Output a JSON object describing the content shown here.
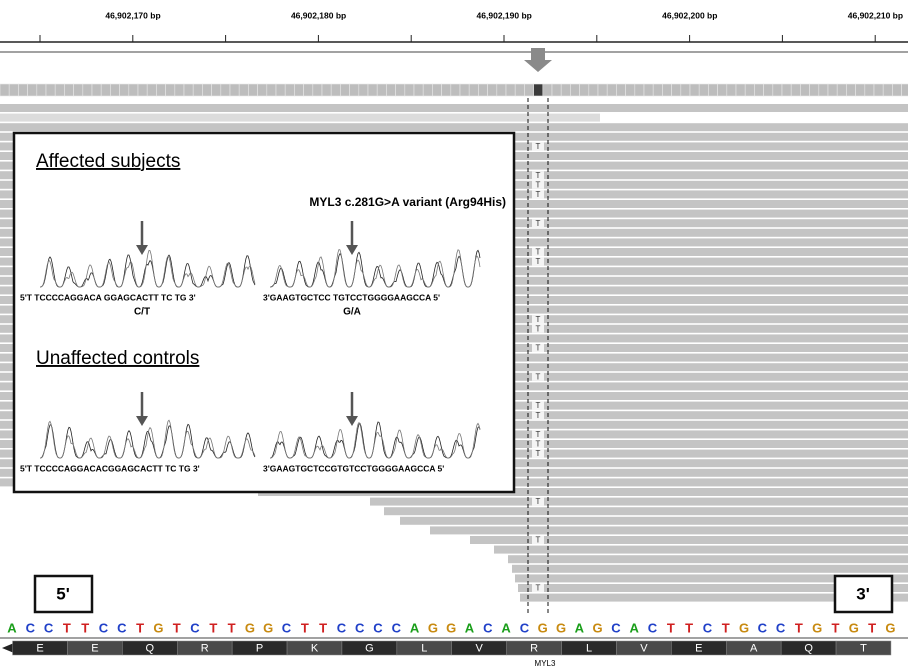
{
  "ruler": {
    "labels": [
      "46,902,170 bp",
      "46,902,180 bp",
      "46,902,190 bp",
      "46,902,200 bp",
      "46,902,210 bp"
    ]
  },
  "reads": {
    "variant_reads": [
      null,
      null,
      null,
      null,
      "T",
      null,
      null,
      "T",
      "T",
      "T",
      null,
      null,
      "T",
      null,
      null,
      "T",
      "T",
      null,
      null,
      null,
      null,
      null,
      "T",
      "T",
      null,
      "T",
      null,
      null,
      "T",
      null,
      null,
      "T",
      "T",
      null,
      "T",
      "T",
      "T",
      null,
      null,
      null,
      null,
      "T",
      null,
      null,
      null,
      "T",
      null,
      null,
      null,
      null,
      "T",
      null
    ]
  },
  "inset": {
    "affected_title": "Affected subjects",
    "variant_label": "MYL3 c.281G>A variant (Arg94His)",
    "affected_forward": "5'T TCCCCAGGACA GGAGCACTT TC TG 3'",
    "affected_reverse": "3'GAAGTGCTCC TGTCCTGGGGAAGCCA 5'",
    "affected_forward_call": "C/T",
    "affected_reverse_call": "G/A",
    "control_title": "Unaffected controls",
    "control_forward": "5'T TCCCCAGGACACGGAGCACTT TC TG 3'",
    "control_reverse": "3'GAAGTGCTCCGTGTCCTGGGGAAGCCA 5'"
  },
  "strand_labels": {
    "left": "5'",
    "right": "3'"
  },
  "reference": {
    "bases": [
      "A",
      "C",
      "C",
      "T",
      "T",
      "C",
      "C",
      "T",
      "G",
      "T",
      "C",
      "T",
      "T",
      "G",
      "G",
      "C",
      "T",
      "T",
      "C",
      "C",
      "C",
      "C",
      "A",
      "G",
      "G",
      "A",
      "C",
      "A",
      "C",
      "G",
      "G",
      "A",
      "G",
      "C",
      "A",
      "C",
      "T",
      "T",
      "C",
      "T",
      "G",
      "C",
      "C",
      "T",
      "G",
      "T",
      "G",
      "T",
      "G"
    ]
  },
  "amino_acids": [
    "E",
    "E",
    "Q",
    "R",
    "P",
    "K",
    "G",
    "L",
    "V",
    "R",
    "L",
    "V",
    "E",
    "A",
    "Q",
    "T"
  ],
  "gene": "MYL3"
}
